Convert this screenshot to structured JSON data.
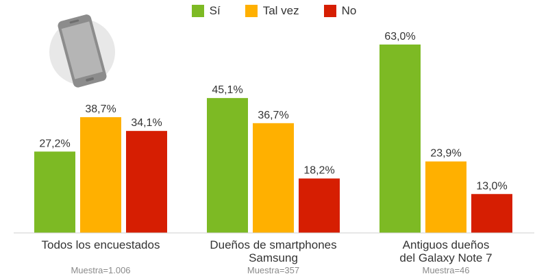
{
  "legend": [
    {
      "label": "Sí",
      "color": "#7dba24"
    },
    {
      "label": "Tal vez",
      "color": "#ffb000"
    },
    {
      "label": "No",
      "color": "#d61e02"
    }
  ],
  "decoration": {
    "icon": "smartphone-icon"
  },
  "chart_data": {
    "type": "bar",
    "categories": [
      [
        "Todos los encuestados"
      ],
      [
        "Dueños de smartphones",
        "Samsung"
      ],
      [
        "Antiguos dueños",
        "del Galaxy Note 7"
      ]
    ],
    "samples": [
      "Muestra=1.006",
      "Muestra=357",
      "Muestra=46"
    ],
    "series": [
      {
        "name": "Sí",
        "color": "#7dba24",
        "values": [
          27.2,
          45.1,
          63.0
        ],
        "labels": [
          "27,2%",
          "45,1%",
          "63,0%"
        ]
      },
      {
        "name": "Tal vez",
        "color": "#ffb000",
        "values": [
          38.7,
          36.7,
          23.9
        ],
        "labels": [
          "38,7%",
          "36,7%",
          "23,9%"
        ]
      },
      {
        "name": "No",
        "color": "#d61e02",
        "values": [
          34.1,
          18.2,
          13.0
        ],
        "labels": [
          "34,1%",
          "18,2%",
          "13,0%"
        ]
      }
    ],
    "ylim": [
      0,
      63
    ],
    "grid": false,
    "legend_position": "top-center"
  }
}
